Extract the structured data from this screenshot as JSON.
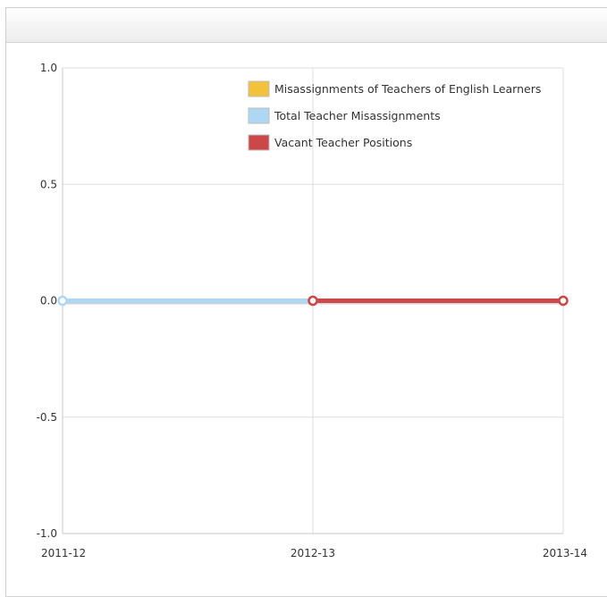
{
  "chart_data": {
    "type": "line",
    "x": [
      "2011-12",
      "2012-13",
      "2013-14"
    ],
    "ylim": [
      -1.0,
      1.0
    ],
    "yticks": [
      "1.0",
      "0.5",
      "0.0",
      "-0.5",
      "-1.0"
    ],
    "yticks_values": [
      1.0,
      0.5,
      0.0,
      -0.5,
      -1.0
    ],
    "grid": true,
    "legend_position": "top-right",
    "series": [
      {
        "name": "Misassignments of Teachers of English Learners",
        "color": "#f2c23c",
        "values": [
          null,
          null,
          null
        ]
      },
      {
        "name": "Total Teacher Misassignments",
        "color": "#aed7f4",
        "values": [
          0,
          0,
          null
        ]
      },
      {
        "name": "Vacant Teacher Positions",
        "color": "#cc4748",
        "values": [
          null,
          0,
          0
        ]
      }
    ]
  }
}
